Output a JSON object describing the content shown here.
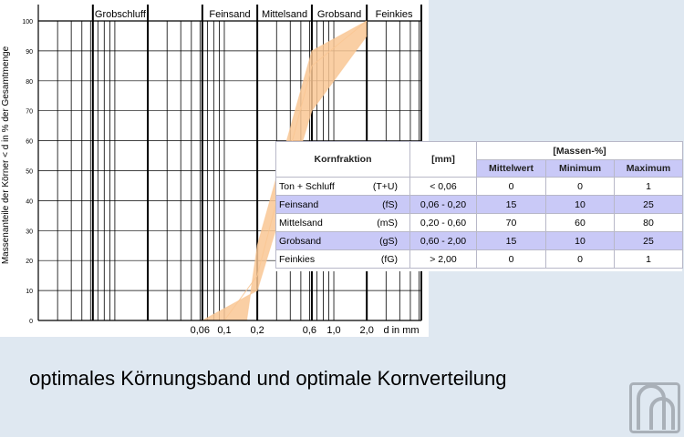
{
  "chart_data": {
    "type": "area",
    "title": "",
    "xlabel": "d in mm",
    "ylabel": "Massenanteile der Körner < d in % der Gesamtmenge",
    "x_scale": "log",
    "xlim": [
      0.002,
      6.3
    ],
    "ylim": [
      0,
      100
    ],
    "y_ticks": [
      0,
      10,
      20,
      30,
      40,
      50,
      60,
      70,
      80,
      90,
      100
    ],
    "x_tick_labels": [
      {
        "x": 0.06,
        "label": "0,06"
      },
      {
        "x": 0.1,
        "label": "0,1"
      },
      {
        "x": 0.2,
        "label": "0,2"
      },
      {
        "x": 0.6,
        "label": "0,6"
      },
      {
        "x": 1.0,
        "label": "1,0"
      },
      {
        "x": 2.0,
        "label": "2,0"
      }
    ],
    "fractions": [
      {
        "label": "Grobschluff",
        "from": 0.0063,
        "to": 0.02
      },
      {
        "label": "Feinsand",
        "from": 0.063,
        "to": 0.2
      },
      {
        "label": "Mittelsand",
        "from": 0.2,
        "to": 0.63
      },
      {
        "label": "Grobsand",
        "from": 0.63,
        "to": 2.0
      },
      {
        "label": "Feinkies",
        "from": 2.0,
        "to": 6.3
      }
    ],
    "grid": true,
    "band_color": "#f9c794",
    "series": [
      {
        "points": [
          [
            0.063,
            0
          ],
          [
            0.2,
            10
          ],
          [
            0.63,
            70
          ],
          [
            2.0,
            95
          ]
        ]
      },
      {
        "points": [
          [
            0.1,
            0
          ],
          [
            0.2,
            15
          ],
          [
            0.63,
            85
          ],
          [
            2.0,
            100
          ]
        ]
      },
      {
        "points": [
          [
            0.16,
            0
          ],
          [
            0.2,
            25
          ],
          [
            0.63,
            90
          ],
          [
            2.0,
            100
          ]
        ]
      }
    ]
  },
  "table": {
    "headers": {
      "fraction": "Kornfraktion",
      "mm": "[mm]",
      "mass": "[Massen-%]",
      "mean": "Mittelwert",
      "min": "Minimum",
      "max": "Maximum"
    },
    "rows": [
      {
        "name": "Ton + Schluff",
        "symbol": "(T+U)",
        "range": "< 0,06",
        "mean": "0",
        "min": "0",
        "max": "1"
      },
      {
        "name": "Feinsand",
        "symbol": "(fS)",
        "range": "0,06 - 0,20",
        "mean": "15",
        "min": "10",
        "max": "25"
      },
      {
        "name": "Mittelsand",
        "symbol": "(mS)",
        "range": "0,20 - 0,60",
        "mean": "70",
        "min": "60",
        "max": "80"
      },
      {
        "name": "Grobsand",
        "symbol": "(gS)",
        "range": "0,60 - 2,00",
        "mean": "15",
        "min": "10",
        "max": "25"
      },
      {
        "name": "Feinkies",
        "symbol": "(fG)",
        "range": "> 2,00",
        "mean": "0",
        "min": "0",
        "max": "1"
      }
    ]
  },
  "caption": "optimales Körnungsband und optimale Kornverteilung",
  "logo": {
    "icon": "university-logo-icon",
    "color": "#a9b0b8"
  }
}
